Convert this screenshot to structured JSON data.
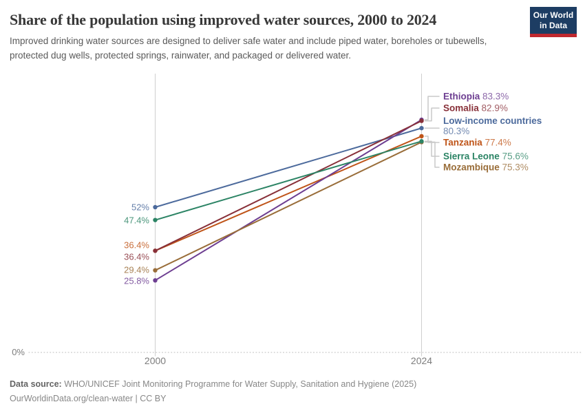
{
  "header": {
    "title": "Share of the population using improved water sources, 2000 to 2024",
    "subtitle": "Improved drinking water sources are designed to deliver safe water and include piped water, boreholes or tubewells, protected dug wells, protected springs, rainwater, and packaged or delivered water.",
    "logo": {
      "line1": "Our World",
      "line2": "in Data",
      "bg_color": "#1d3d63",
      "bar_color": "#c0282e"
    }
  },
  "chart_data": {
    "type": "line",
    "variant": "slope",
    "x": [
      2000,
      2024
    ],
    "x_tick_labels": [
      "2000",
      "2024"
    ],
    "y_axis": {
      "baseline_label": "0%",
      "min": 0,
      "max": 100,
      "unit": "%"
    },
    "grid": "baseline-dotted, vertical rules at each year",
    "legend_position": "right, labels attached to line ends",
    "series": [
      {
        "name": "Low-income countries",
        "values": [
          52,
          80.3
        ],
        "start_label": "52%",
        "end_label": "80.3%",
        "color": "#4c6a9c"
      },
      {
        "name": "Tanzania",
        "values": [
          36.4,
          77.4
        ],
        "start_label": "36.4%",
        "end_label": "77.4%",
        "color": "#bf5418"
      },
      {
        "name": "Ethiopia",
        "values": [
          25.8,
          83.3
        ],
        "start_label": "25.8%",
        "end_label": "83.3%",
        "color": "#6d3e91"
      },
      {
        "name": "Somalia",
        "values": [
          36.4,
          82.9
        ],
        "start_label": "36.4%",
        "end_label": "82.9%",
        "color": "#883039"
      },
      {
        "name": "Mozambique",
        "values": [
          29.4,
          75.3
        ],
        "start_label": "29.4%",
        "end_label": "75.3%",
        "color": "#996d39"
      },
      {
        "name": "Sierra Leone",
        "values": [
          47.4,
          75.6
        ],
        "start_label": "47.4%",
        "end_label": "75.6%",
        "color": "#2c8465"
      }
    ],
    "colors": {
      "axis_rule": "#cfcfcf",
      "baseline_dots": "#c9c9c9",
      "connector": "#c9c9c9",
      "tick_text": "#7d7d7d"
    }
  },
  "footer": {
    "source_label": "Data source:",
    "source_text": "WHO/UNICEF Joint Monitoring Programme for Water Supply, Sanitation and Hygiene (2025)",
    "link_text": "OurWorldinData.org/clean-water | CC BY"
  }
}
